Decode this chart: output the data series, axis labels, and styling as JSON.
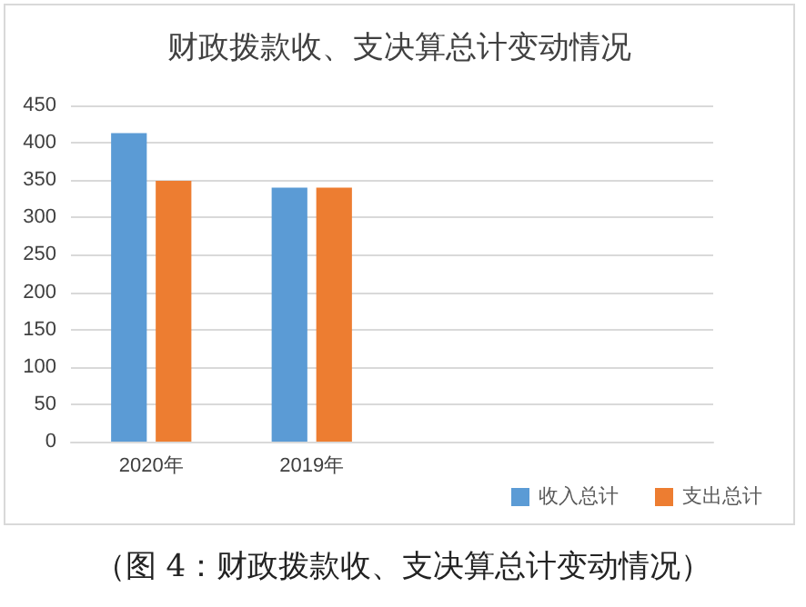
{
  "chart_data": {
    "type": "bar",
    "title": "财政拨款收、支决算总计变动情况",
    "categories": [
      "2020年",
      "2019年",
      null,
      null
    ],
    "series": [
      {
        "name": "收入总计",
        "color": "#5b9bd5",
        "values": [
          413,
          340,
          null,
          null
        ]
      },
      {
        "name": "支出总计",
        "color": "#ed7d31",
        "values": [
          349,
          340,
          null,
          null
        ]
      }
    ],
    "ylim": [
      0,
      450
    ],
    "yticks": [
      0,
      50,
      100,
      150,
      200,
      250,
      300,
      350,
      400,
      450
    ],
    "grid": "y",
    "legend": "bottom right",
    "annotations": [
      "（图 4：财政拨款收、支决算总计变动情况）"
    ]
  }
}
